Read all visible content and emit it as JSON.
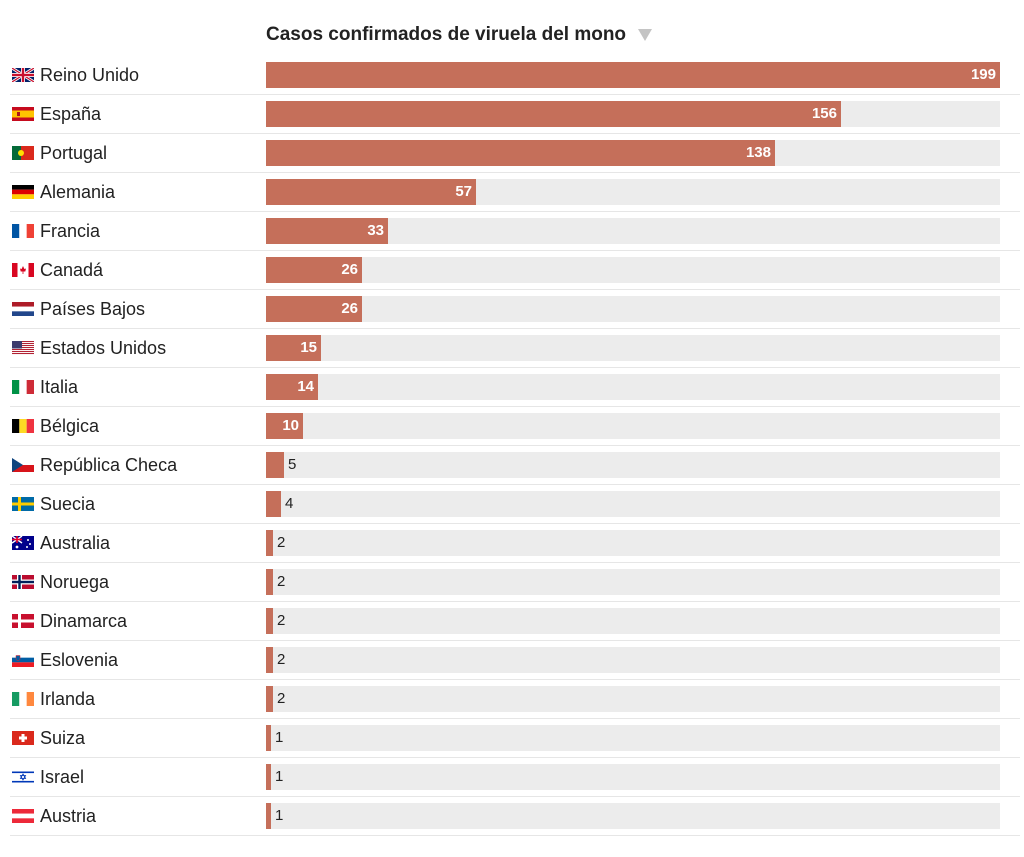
{
  "chart_data": {
    "type": "bar",
    "orientation": "horizontal",
    "title": "Casos confirmados de viruela del mono",
    "sort_icon": "sort-desc-icon",
    "bar_color": "#c56f5a",
    "track_color": "#ececec",
    "xlim": [
      0,
      199
    ],
    "categories": [
      "Reino Unido",
      "España",
      "Portugal",
      "Alemania",
      "Francia",
      "Canadá",
      "Países Bajos",
      "Estados Unidos",
      "Italia",
      "Bélgica",
      "República Checa",
      "Suecia",
      "Australia",
      "Noruega",
      "Dinamarca",
      "Eslovenia",
      "Irlanda",
      "Suiza",
      "Israel",
      "Austria"
    ],
    "values": [
      199,
      156,
      138,
      57,
      33,
      26,
      26,
      15,
      14,
      10,
      5,
      4,
      2,
      2,
      2,
      2,
      2,
      1,
      1,
      1
    ],
    "flags": [
      "uk-flag-icon",
      "spain-flag-icon",
      "portugal-flag-icon",
      "germany-flag-icon",
      "france-flag-icon",
      "canada-flag-icon",
      "netherlands-flag-icon",
      "usa-flag-icon",
      "italy-flag-icon",
      "belgium-flag-icon",
      "czech-flag-icon",
      "sweden-flag-icon",
      "australia-flag-icon",
      "norway-flag-icon",
      "denmark-flag-icon",
      "slovenia-flag-icon",
      "ireland-flag-icon",
      "switzerland-flag-icon",
      "israel-flag-icon",
      "austria-flag-icon"
    ]
  }
}
